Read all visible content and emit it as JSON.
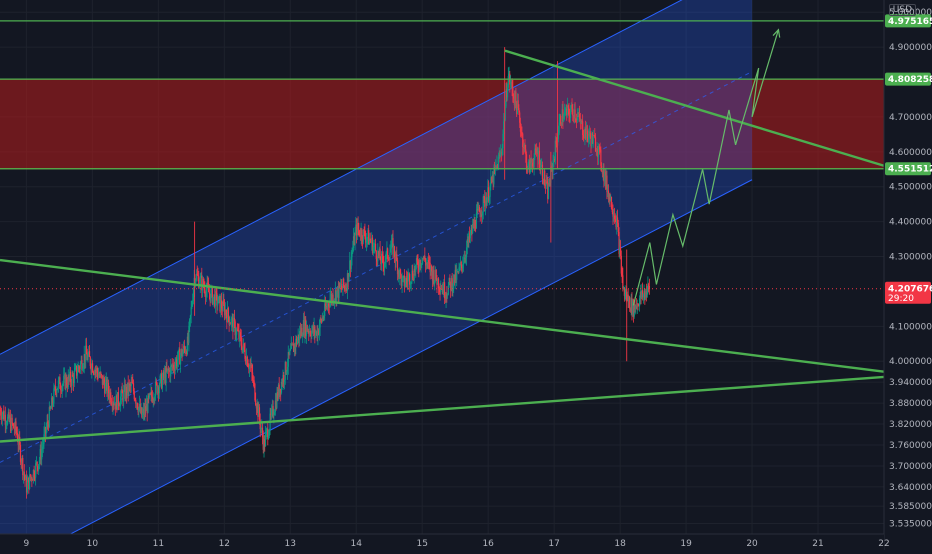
{
  "currency": "USD",
  "colors": {
    "background": "#131722",
    "grid": "#1e222d",
    "up_candle": "#089981",
    "down_candle": "#f23645",
    "channel_fill": "#2962ff",
    "channel_line": "#2962ff",
    "trend_line": "#4caf50",
    "resistance_zone": "#b71c1c",
    "level_line": "#4caf50",
    "zone_edge": "#ff9800",
    "projection": "#66bb6a"
  },
  "chart_data": {
    "type": "candlestick",
    "x_axis": {
      "unit": "day",
      "range": [
        8.6,
        22.0
      ],
      "tick_labels": [
        "9",
        "10",
        "11",
        "12",
        "13",
        "14",
        "15",
        "16",
        "17",
        "18",
        "19",
        "20",
        "21",
        "22"
      ],
      "tick_values": [
        9,
        10,
        11,
        12,
        13,
        14,
        15,
        16,
        17,
        18,
        19,
        20,
        21,
        22
      ]
    },
    "y_axis": {
      "range": [
        3.505,
        5.035
      ],
      "tick_values": [
        5.0,
        4.9,
        4.7,
        4.6,
        4.5,
        4.4,
        4.3,
        4.1,
        4.0,
        3.94,
        3.88,
        3.82,
        3.76,
        3.7,
        3.64,
        3.585,
        3.535
      ],
      "tick_labels": [
        "5.0000000",
        "4.9000000",
        "4.7000000",
        "4.6000000",
        "4.5000000",
        "4.4000000",
        "4.3000000",
        "4.1000000",
        "4.0000000",
        "3.9400000",
        "3.8800000",
        "3.8200000",
        "3.7600000",
        "3.7000000",
        "3.6400000",
        "3.5850000",
        "3.5350000"
      ]
    },
    "price_levels": [
      {
        "value": 4.9751653,
        "label": "4.9751653",
        "color": "#4caf50"
      },
      {
        "value": 4.8082587,
        "label": "4.8082587",
        "color": "#4caf50"
      },
      {
        "value": 4.5515123,
        "label": "4.5515123",
        "color": "#4caf50"
      }
    ],
    "current_price": {
      "value": 4.2076764,
      "label": "4.2076764",
      "countdown": "29:20",
      "color": "#f23645"
    },
    "resistance_zone": {
      "top": 4.8082587,
      "bottom": 4.5515123
    },
    "channel": {
      "lower_start": [
        8.6,
        3.4
      ],
      "lower_end": [
        20.0,
        4.52
      ],
      "upper_start": [
        8.6,
        4.02
      ],
      "upper_end": [
        20.0,
        5.14
      ]
    },
    "trend_lines": [
      {
        "name": "descending-support",
        "start": [
          8.6,
          4.29
        ],
        "end": [
          22.0,
          3.97
        ]
      },
      {
        "name": "rising-base",
        "start": [
          8.6,
          3.77
        ],
        "end": [
          22.0,
          3.955
        ]
      },
      {
        "name": "descending-resistance",
        "start": [
          16.25,
          4.89
        ],
        "end": [
          22.0,
          4.56
        ]
      }
    ],
    "projection_path": [
      [
        18.2,
        4.16
      ],
      [
        18.45,
        4.34
      ],
      [
        18.55,
        4.22
      ],
      [
        18.8,
        4.42
      ],
      [
        18.95,
        4.33
      ],
      [
        19.25,
        4.55
      ],
      [
        19.35,
        4.45
      ],
      [
        19.65,
        4.72
      ],
      [
        19.75,
        4.62
      ],
      [
        20.1,
        4.84
      ],
      [
        20.0,
        4.7
      ],
      [
        20.4,
        4.95
      ]
    ],
    "candles_generated": true
  }
}
